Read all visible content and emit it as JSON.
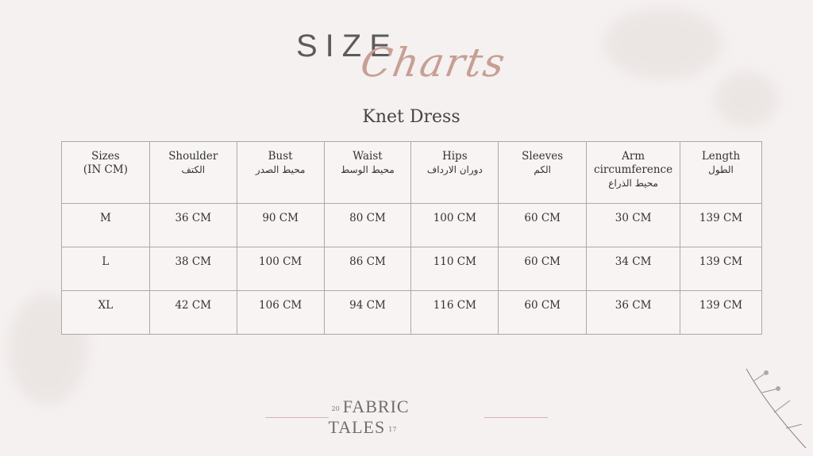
{
  "title": {
    "size": "SIZE",
    "charts": "Charts"
  },
  "subtitle": "Knet Dress",
  "table": {
    "headers": [
      {
        "en": "Sizes",
        "en2": "(IN CM)",
        "ar": ""
      },
      {
        "en": "Shoulder",
        "en2": "",
        "ar": "الكتف"
      },
      {
        "en": "Bust",
        "en2": "",
        "ar": "محيط الصدر"
      },
      {
        "en": "Waist",
        "en2": "",
        "ar": "محيط الوسط"
      },
      {
        "en": "Hips",
        "en2": "",
        "ar": "دوران الارداف"
      },
      {
        "en": "Sleeves",
        "en2": "",
        "ar": "الكم"
      },
      {
        "en": "Arm",
        "en2": "circumference",
        "ar": "محيط الذراع"
      },
      {
        "en": "Length",
        "en2": "",
        "ar": "الطول"
      }
    ],
    "rows": [
      [
        "M",
        "36 CM",
        "90 CM",
        "80 CM",
        "100 CM",
        "60 CM",
        "30 CM",
        "139 CM"
      ],
      [
        "L",
        "38 CM",
        "100 CM",
        "86 CM",
        "110 CM",
        "60 CM",
        "34 CM",
        "139 CM"
      ],
      [
        "XL",
        "42 CM",
        "106 CM",
        "94 CM",
        "116 CM",
        "60 CM",
        "36 CM",
        "139 CM"
      ]
    ]
  },
  "footer": {
    "year_left": "20",
    "brand": "FABRIC TALES",
    "year_right": "17"
  },
  "colors": {
    "accent": "#c79f95",
    "background": "#f5f1f0"
  }
}
